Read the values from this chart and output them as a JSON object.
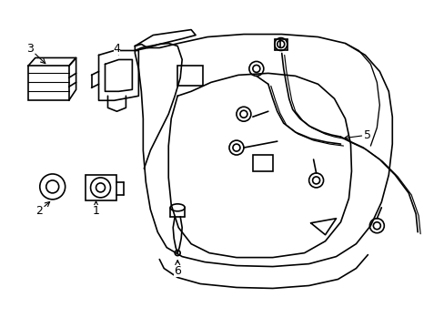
{
  "background_color": "#ffffff",
  "line_color": "#000000",
  "line_width": 1.2,
  "label_fontsize": 9,
  "figsize": [
    4.89,
    3.6
  ],
  "dpi": 100
}
